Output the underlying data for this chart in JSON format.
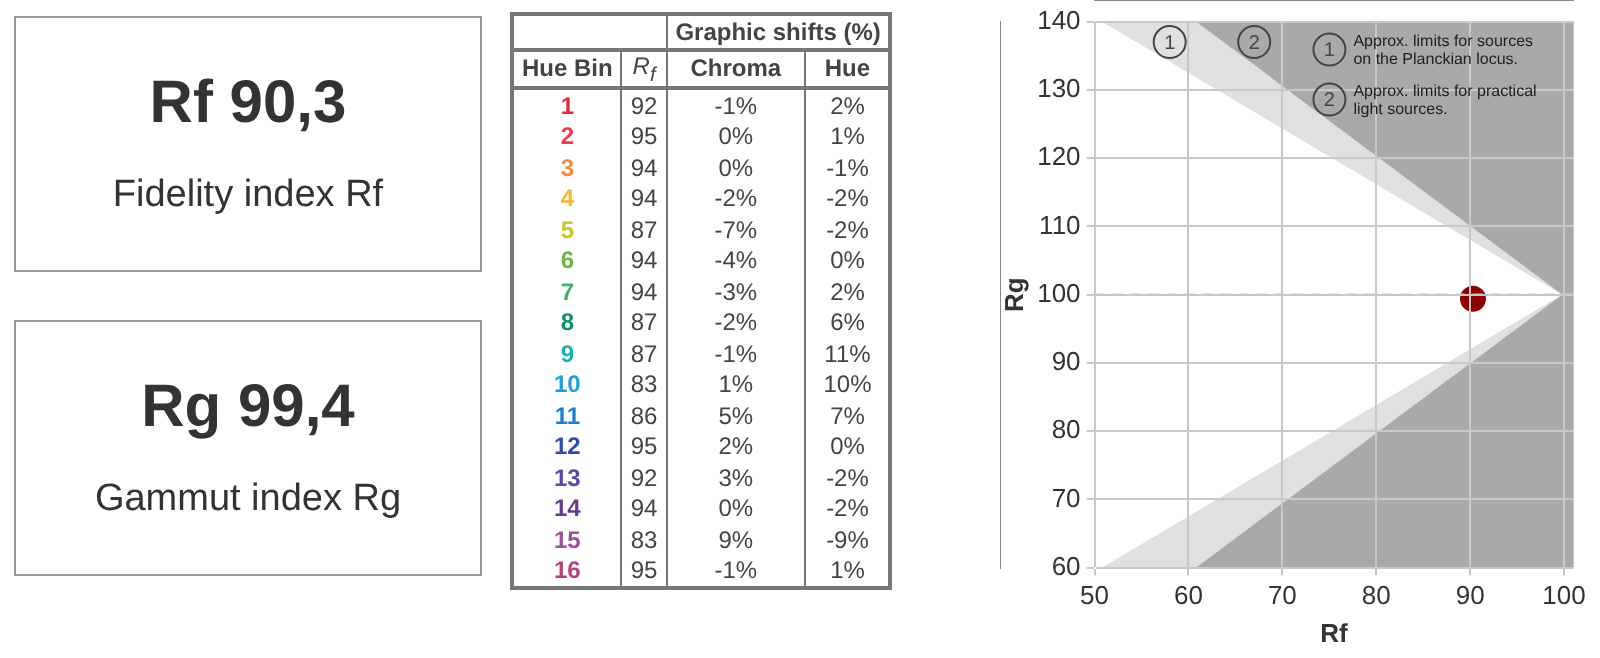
{
  "chart_data": [
    {
      "type": "other",
      "title": "Rf 90,3",
      "subtitle": "Fidelity index Rf"
    },
    {
      "type": "other",
      "title": "Rg 99,4",
      "subtitle": "Gammut index Rg"
    },
    {
      "type": "heatmap",
      "title": "Graphic shifts (%)",
      "ylabel": "Hue Bin",
      "categories": [
        "R$_{f}$",
        "Chroma",
        "Hue"
      ],
      "y_categories": [
        "1",
        "2",
        "3",
        "4",
        "5",
        "6",
        "7",
        "8",
        "9",
        "10",
        "11",
        "12",
        "13",
        "14",
        "15",
        "16"
      ],
      "colors": [
        "#e8262f",
        "#ec3c4a",
        "#f58b3c",
        "#f5b82a",
        "#c8c826",
        "#6db33f",
        "#3cb36a",
        "#0e8f6a",
        "#16b3b0",
        "#1ba3d6",
        "#1a7fd0",
        "#2b4fa8",
        "#5a4aa6",
        "#6a3a8e",
        "#a0509a",
        "#b8407a"
      ],
      "cells": [
        [
          92,
          -1,
          2
        ],
        [
          95,
          0,
          1
        ],
        [
          94,
          0,
          -1
        ],
        [
          94,
          -2,
          -2
        ],
        [
          87,
          -7,
          -2
        ],
        [
          94,
          -4,
          0
        ],
        [
          94,
          -3,
          2
        ],
        [
          87,
          -2,
          6
        ],
        [
          87,
          -1,
          11
        ],
        [
          83,
          1,
          10
        ],
        [
          86,
          5,
          7
        ],
        [
          95,
          2,
          0
        ],
        [
          92,
          3,
          -2
        ],
        [
          94,
          0,
          -2
        ],
        [
          83,
          9,
          -9
        ],
        [
          95,
          -1,
          1
        ]
      ],
      "cell_labels": [
        [
          "92",
          "-1%",
          "2%"
        ],
        [
          "95",
          "0%",
          "1%"
        ],
        [
          "94",
          "0%",
          "-1%"
        ],
        [
          "94",
          "-2%",
          "-2%"
        ],
        [
          "87",
          "-7%",
          "-2%"
        ],
        [
          "94",
          "-4%",
          "0%"
        ],
        [
          "94",
          "-3%",
          "2%"
        ],
        [
          "87",
          "-2%",
          "6%"
        ],
        [
          "87",
          "-1%",
          "11%"
        ],
        [
          "83",
          "1%",
          "10%"
        ],
        [
          "86",
          "5%",
          "7%"
        ],
        [
          "95",
          "2%",
          "0%"
        ],
        [
          "92",
          "3%",
          "-2%"
        ],
        [
          "94",
          "0%",
          "-2%"
        ],
        [
          "83",
          "9%",
          "-9%"
        ],
        [
          "95",
          "-1%",
          "1%"
        ]
      ]
    },
    {
      "type": "scatter",
      "xlabel": "Rf",
      "ylabel": "Rg",
      "xlim": [
        50,
        101
      ],
      "ylim": [
        60,
        140
      ],
      "xticks": [
        50,
        60,
        70,
        80,
        90,
        100
      ],
      "yticks": [
        60,
        70,
        80,
        90,
        100,
        110,
        120,
        130,
        140
      ],
      "grid": true,
      "legend": false,
      "series": [
        {
          "type": "area",
          "color": "#e0e0e0",
          "x": [
            51,
            100,
            51,
            101,
            101
          ],
          "values": [
            140,
            100,
            60,
            60,
            140
          ]
        },
        {
          "type": "area",
          "color": "#a9a9a9",
          "x": [
            61,
            100,
            61,
            101,
            101
          ],
          "values": [
            140,
            100,
            60,
            60,
            140
          ]
        },
        {
          "type": "scatter",
          "color": "#8b0000",
          "marker": "circle",
          "x": [
            90.3
          ],
          "values": [
            99.4
          ]
        }
      ],
      "ref_lines": [
        {
          "axis": "y",
          "value": 100,
          "color": "#cccccc",
          "line_style": "dashed"
        }
      ],
      "annotations": [
        {
          "text": "1",
          "x": 58,
          "y": 137
        },
        {
          "text": "2",
          "x": 67,
          "y": 137
        },
        "1",
        "Approx. limits for sources on the Planckian locus.",
        "2",
        "Approx. limits for practical light sources."
      ]
    }
  ]
}
